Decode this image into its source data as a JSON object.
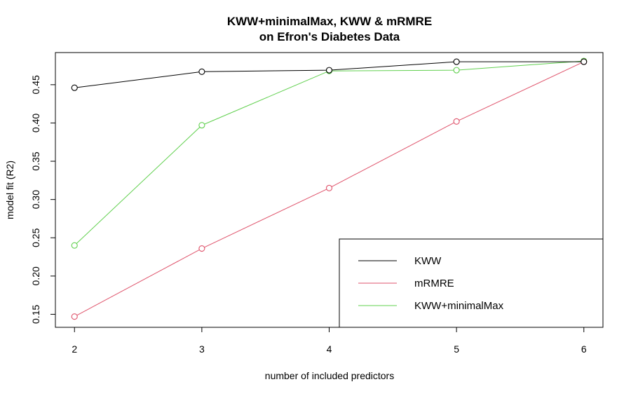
{
  "chart_data": {
    "type": "line",
    "title": "KWW+minimalMax, KWW & mRMRE",
    "subtitle": "on Efron's Diabetes Data",
    "xlabel": "number of included predictors",
    "ylabel": "model fit (R2)",
    "x": [
      2,
      3,
      4,
      5,
      6
    ],
    "xticks": [
      2,
      3,
      4,
      5,
      6
    ],
    "yticks": [
      0.15,
      0.2,
      0.25,
      0.3,
      0.35,
      0.4,
      0.45
    ],
    "ytick_labels": [
      "0.15",
      "0.20",
      "0.25",
      "0.30",
      "0.35",
      "0.40",
      "0.45"
    ],
    "xlim": [
      1.85,
      6.15
    ],
    "ylim": [
      0.133,
      0.492
    ],
    "grid": false,
    "legend_position": "bottom-right",
    "series": [
      {
        "name": "KWW",
        "color": "#000000",
        "values": [
          0.446,
          0.467,
          0.469,
          0.48,
          0.48
        ]
      },
      {
        "name": "mRMRE",
        "color": "#df536b",
        "values": [
          0.147,
          0.236,
          0.315,
          0.402,
          0.48
        ]
      },
      {
        "name": "KWW+minimalMax",
        "color": "#61d04f",
        "values": [
          0.24,
          0.397,
          0.468,
          0.469,
          0.481
        ]
      }
    ]
  }
}
